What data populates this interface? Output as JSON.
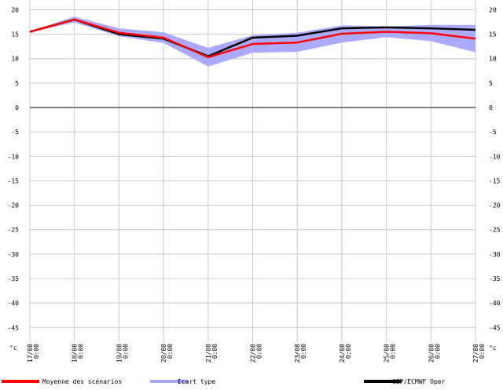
{
  "chart_data": {
    "type": "line",
    "unit_label": "°c",
    "x": [
      "17/08 0:00",
      "18/08 0:00",
      "19/08 0:00",
      "20/08 0:00",
      "21/08 0:00",
      "22/08 0:00",
      "23/08 0:00",
      "24/08 0:00",
      "25/08 0:00",
      "26/08 0:00",
      "27/08 0:00"
    ],
    "ylim": [
      -48,
      22
    ],
    "yticks": [
      20,
      15,
      10,
      5,
      0,
      -5,
      -10,
      -15,
      -20,
      -25,
      -30,
      -35,
      -40,
      -45
    ],
    "grid": true,
    "zero_line": true,
    "series": [
      {
        "name": "Moyenne des scénarios",
        "color": "#ff0000",
        "values": [
          15.5,
          18.0,
          15.3,
          14.3,
          10.3,
          13.0,
          13.3,
          15.1,
          15.5,
          15.2,
          14.1
        ]
      },
      {
        "name": "Ecart type",
        "color": "#aaaaff",
        "band": true,
        "lower": [
          15.4,
          17.4,
          14.6,
          13.2,
          8.4,
          11.2,
          11.4,
          13.3,
          14.4,
          13.6,
          11.3
        ],
        "upper": [
          15.6,
          18.6,
          16.2,
          15.4,
          12.2,
          14.8,
          15.3,
          16.8,
          16.6,
          16.9,
          16.9
        ]
      },
      {
        "name": "CEP/ECMWF Oper",
        "color": "#000000",
        "values": [
          15.5,
          18.0,
          15.0,
          14.1,
          10.5,
          14.3,
          14.7,
          16.2,
          16.4,
          16.2,
          15.9
        ]
      }
    ]
  }
}
